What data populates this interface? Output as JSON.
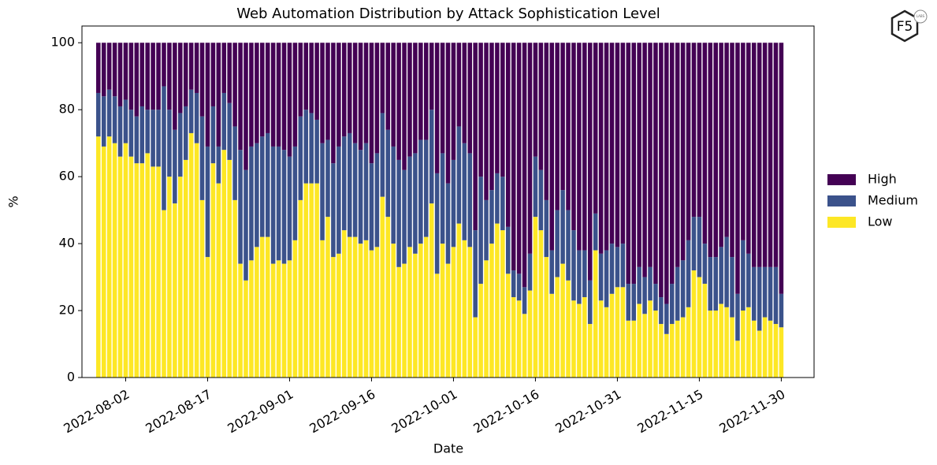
{
  "chart_data": {
    "type": "stacked_bar",
    "title": "Web Automation Distribution by Attack Sophistication Level",
    "x_label": "Date",
    "y_label": "%",
    "logo": {
      "text": "F5",
      "sub": "LABS"
    },
    "x": [
      "2022-07-28",
      "2022-07-29",
      "2022-07-30",
      "2022-07-31",
      "2022-08-01",
      "2022-08-02",
      "2022-08-03",
      "2022-08-04",
      "2022-08-05",
      "2022-08-06",
      "2022-08-07",
      "2022-08-08",
      "2022-08-09",
      "2022-08-10",
      "2022-08-11",
      "2022-08-12",
      "2022-08-13",
      "2022-08-14",
      "2022-08-15",
      "2022-08-16",
      "2022-08-17",
      "2022-08-18",
      "2022-08-19",
      "2022-08-20",
      "2022-08-21",
      "2022-08-22",
      "2022-08-23",
      "2022-08-24",
      "2022-08-25",
      "2022-08-26",
      "2022-08-27",
      "2022-08-28",
      "2022-08-29",
      "2022-08-30",
      "2022-08-31",
      "2022-09-01",
      "2022-09-02",
      "2022-09-03",
      "2022-09-04",
      "2022-09-05",
      "2022-09-06",
      "2022-09-07",
      "2022-09-08",
      "2022-09-09",
      "2022-09-10",
      "2022-09-11",
      "2022-09-12",
      "2022-09-13",
      "2022-09-14",
      "2022-09-15",
      "2022-09-16",
      "2022-09-17",
      "2022-09-18",
      "2022-09-19",
      "2022-09-20",
      "2022-09-21",
      "2022-09-22",
      "2022-09-23",
      "2022-09-24",
      "2022-09-25",
      "2022-09-26",
      "2022-09-27",
      "2022-09-28",
      "2022-09-29",
      "2022-09-30",
      "2022-10-01",
      "2022-10-02",
      "2022-10-03",
      "2022-10-04",
      "2022-10-05",
      "2022-10-06",
      "2022-10-07",
      "2022-10-08",
      "2022-10-09",
      "2022-10-10",
      "2022-10-11",
      "2022-10-12",
      "2022-10-13",
      "2022-10-14",
      "2022-10-15",
      "2022-10-16",
      "2022-10-17",
      "2022-10-18",
      "2022-10-19",
      "2022-10-20",
      "2022-10-21",
      "2022-10-22",
      "2022-10-23",
      "2022-10-24",
      "2022-10-25",
      "2022-10-26",
      "2022-10-27",
      "2022-10-28",
      "2022-10-29",
      "2022-10-30",
      "2022-10-31",
      "2022-11-01",
      "2022-11-02",
      "2022-11-03",
      "2022-11-04",
      "2022-11-05",
      "2022-11-06",
      "2022-11-07",
      "2022-11-08",
      "2022-11-09",
      "2022-11-10",
      "2022-11-11",
      "2022-11-12",
      "2022-11-13",
      "2022-11-14",
      "2022-11-15",
      "2022-11-16",
      "2022-11-17",
      "2022-11-18",
      "2022-11-19",
      "2022-11-20",
      "2022-11-21",
      "2022-11-22",
      "2022-11-23",
      "2022-11-24",
      "2022-11-25",
      "2022-11-26",
      "2022-11-27",
      "2022-11-28",
      "2022-11-29",
      "2022-11-30"
    ],
    "series": [
      {
        "name": "Low",
        "color": "#fde725",
        "values": [
          72,
          69,
          72,
          70,
          66,
          70,
          66,
          64,
          64,
          67,
          63,
          63,
          50,
          60,
          52,
          60,
          65,
          73,
          70,
          53,
          36,
          64,
          58,
          68,
          65,
          53,
          34,
          29,
          35,
          39,
          42,
          42,
          34,
          35,
          34,
          35,
          41,
          53,
          58,
          58,
          58,
          41,
          48,
          36,
          37,
          44,
          42,
          42,
          40,
          41,
          38,
          39,
          54,
          48,
          40,
          33,
          34,
          39,
          37,
          40,
          42,
          52,
          31,
          40,
          34,
          39,
          46,
          41,
          39,
          18,
          28,
          35,
          40,
          46,
          44,
          31,
          24,
          23,
          19,
          26,
          48,
          44,
          36,
          25,
          30,
          34,
          29,
          23,
          22,
          24,
          16,
          38,
          23,
          21,
          25,
          27,
          27,
          17,
          17,
          22,
          19,
          23,
          20,
          16,
          13,
          16,
          17,
          18,
          21,
          32,
          30,
          28,
          20,
          20,
          22,
          21,
          18,
          11,
          20,
          21,
          17,
          14,
          18,
          17,
          16,
          15
        ]
      },
      {
        "name": "Medium",
        "color": "#3b528b",
        "values": [
          13,
          15,
          14,
          14,
          15,
          13,
          14,
          14,
          17,
          13,
          17,
          17,
          37,
          20,
          22,
          19,
          16,
          13,
          15,
          25,
          33,
          17,
          11,
          17,
          17,
          22,
          34,
          33,
          34,
          31,
          30,
          31,
          35,
          34,
          34,
          31,
          28,
          25,
          22,
          21,
          19,
          29,
          23,
          28,
          32,
          28,
          31,
          28,
          28,
          29,
          26,
          28,
          25,
          26,
          29,
          32,
          28,
          27,
          30,
          31,
          29,
          28,
          30,
          27,
          24,
          26,
          29,
          29,
          28,
          26,
          32,
          18,
          16,
          15,
          16,
          14,
          8,
          8,
          8,
          11,
          18,
          18,
          17,
          13,
          20,
          22,
          21,
          21,
          16,
          14,
          13,
          11,
          14,
          17,
          15,
          12,
          13,
          11,
          11,
          11,
          11,
          10,
          8,
          8,
          9,
          12,
          16,
          17,
          20,
          16,
          18,
          12,
          16,
          16,
          17,
          21,
          18,
          14,
          21,
          16,
          16,
          19,
          15,
          16,
          17,
          10
        ]
      },
      {
        "name": "High",
        "color": "#440154",
        "values": [
          15,
          16,
          14,
          16,
          19,
          17,
          20,
          22,
          19,
          20,
          20,
          20,
          13,
          20,
          26,
          21,
          19,
          14,
          15,
          22,
          31,
          19,
          31,
          15,
          18,
          25,
          32,
          38,
          31,
          30,
          28,
          27,
          31,
          31,
          32,
          34,
          31,
          22,
          20,
          21,
          23,
          30,
          29,
          36,
          31,
          28,
          27,
          30,
          32,
          30,
          36,
          33,
          21,
          26,
          31,
          35,
          38,
          34,
          33,
          29,
          29,
          20,
          39,
          33,
          42,
          35,
          25,
          30,
          33,
          56,
          40,
          47,
          44,
          39,
          40,
          55,
          68,
          69,
          73,
          63,
          34,
          38,
          47,
          62,
          50,
          44,
          50,
          56,
          62,
          62,
          71,
          51,
          63,
          62,
          60,
          61,
          60,
          72,
          72,
          67,
          70,
          67,
          72,
          76,
          78,
          72,
          67,
          65,
          59,
          52,
          52,
          60,
          64,
          64,
          61,
          58,
          64,
          75,
          59,
          63,
          67,
          67,
          67,
          67,
          67,
          75
        ]
      }
    ],
    "xlim": [
      "2022-07-25",
      "2022-12-06"
    ],
    "xticks": [
      "2022-08-02",
      "2022-08-17",
      "2022-09-01",
      "2022-09-16",
      "2022-10-01",
      "2022-10-16",
      "2022-10-31",
      "2022-11-15",
      "2022-11-30"
    ],
    "ylim": [
      0,
      105
    ],
    "yticks": [
      0,
      20,
      40,
      60,
      80,
      100
    ],
    "legend": "right"
  }
}
